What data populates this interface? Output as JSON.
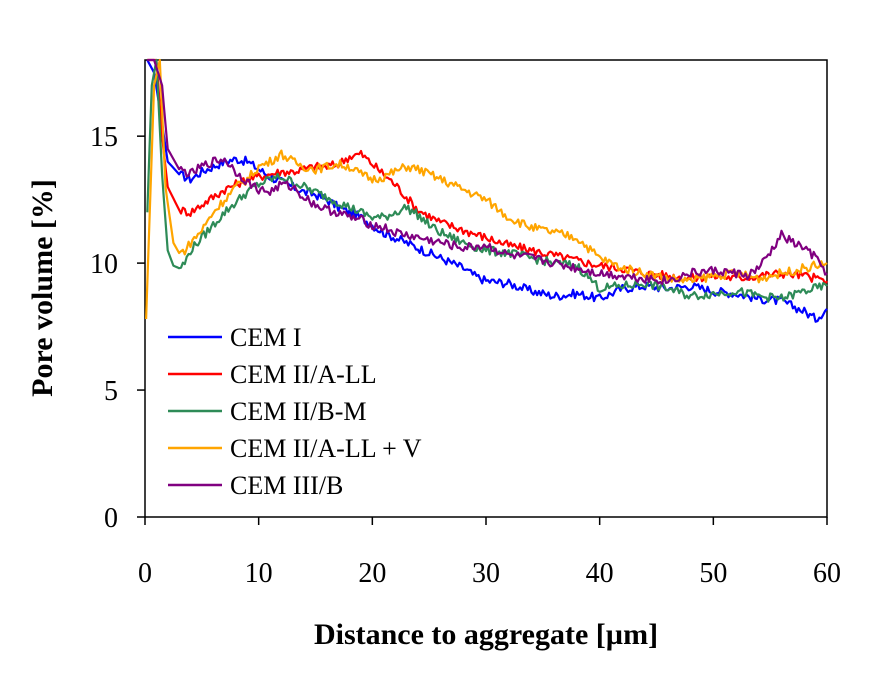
{
  "chart_data": {
    "type": "line",
    "title": "",
    "xlabel": "Distance to aggregate [µm]",
    "ylabel": "Pore volume [%]",
    "xlim": [
      0,
      60
    ],
    "ylim": [
      0,
      18
    ],
    "xticks": [
      0,
      10,
      20,
      30,
      40,
      50,
      60
    ],
    "yticks": [
      0,
      5,
      10,
      15
    ],
    "grid": false,
    "legend_position": "bottom-left",
    "series": [
      {
        "name": "CEM I",
        "color": "#0000ff",
        "x": [
          0.2,
          0.8,
          1.5,
          2,
          3,
          4,
          5,
          6,
          7,
          8,
          9,
          10,
          11,
          12,
          13,
          14,
          15,
          16,
          17,
          18,
          19,
          20,
          21,
          22,
          23,
          24,
          25,
          26,
          27,
          28,
          29,
          30,
          32,
          34,
          36,
          38,
          40,
          42,
          44,
          46,
          48,
          50,
          52,
          54,
          56,
          58,
          59,
          60
        ],
        "y": [
          18,
          17.5,
          15.5,
          14,
          13.5,
          13.3,
          13.6,
          13.8,
          14,
          14.1,
          14,
          13.7,
          13.4,
          13.2,
          13,
          12.8,
          12.7,
          12.5,
          12.2,
          12,
          11.8,
          11.5,
          11.2,
          11,
          10.8,
          10.6,
          10.4,
          10.2,
          10,
          9.8,
          9.5,
          9.3,
          9.2,
          8.9,
          8.7,
          8.8,
          8.6,
          9,
          9.1,
          9,
          9.1,
          8.9,
          8.8,
          8.6,
          8.5,
          8.1,
          7.8,
          8.2
        ]
      },
      {
        "name": "CEM II/A-LL",
        "color": "#ff0000",
        "x": [
          0.2,
          1,
          1.5,
          2,
          3,
          4,
          5,
          6,
          7,
          8,
          9,
          10,
          11,
          12,
          13,
          14,
          15,
          16,
          17,
          18,
          19,
          20,
          21,
          22,
          23,
          24,
          26,
          28,
          30,
          32,
          34,
          36,
          38,
          40,
          42,
          44,
          46,
          48,
          50,
          52,
          54,
          56,
          58,
          60
        ],
        "y": [
          18,
          18,
          15,
          13,
          12.1,
          12,
          12.3,
          12.6,
          12.9,
          13.1,
          13.3,
          13.4,
          13.5,
          13.6,
          13.6,
          13.7,
          13.8,
          13.8,
          13.9,
          14.2,
          14.3,
          13.9,
          13.5,
          13.1,
          12.6,
          12.1,
          11.6,
          11.3,
          11,
          10.7,
          10.5,
          10.3,
          10.1,
          9.9,
          9.8,
          9.6,
          9.5,
          9.4,
          9.5,
          9.4,
          9.5,
          9.6,
          9.5,
          9.3
        ]
      },
      {
        "name": "CEM II/B-M",
        "color": "#2e8b57",
        "x": [
          0.2,
          0.6,
          1,
          1.5,
          2,
          2.5,
          3,
          3.5,
          4,
          5,
          6,
          7,
          8,
          9,
          10,
          11,
          12,
          13,
          14,
          15,
          16,
          17,
          18,
          19,
          20,
          21,
          22,
          23,
          24,
          25,
          26,
          28,
          30,
          32,
          34,
          36,
          38,
          40,
          42,
          44,
          46,
          48,
          50,
          52,
          54,
          56,
          58,
          60
        ],
        "y": [
          12,
          17,
          18,
          13.5,
          10.5,
          9.9,
          9.8,
          10,
          10.5,
          11,
          11.5,
          12,
          12.4,
          12.8,
          13.1,
          13.3,
          13.4,
          13.2,
          13,
          12.8,
          12.6,
          12.4,
          12.2,
          12,
          11.8,
          11.8,
          12,
          12.2,
          11.9,
          11.5,
          11.2,
          10.8,
          10.5,
          10.4,
          10.2,
          10,
          9.9,
          9,
          9.1,
          9.2,
          9,
          8.7,
          8.8,
          8.9,
          8.7,
          8.6,
          8.9,
          9.1
        ]
      },
      {
        "name": "CEM II/A-LL + V",
        "color": "#ffa500",
        "x": [
          0.1,
          0.8,
          1.3,
          1.8,
          2.5,
          3,
          3.5,
          4,
          5,
          6,
          7,
          8,
          9,
          10,
          11,
          12,
          13,
          14,
          15,
          16,
          17,
          18,
          19,
          20,
          21,
          22,
          23,
          24,
          25,
          26,
          28,
          30,
          32,
          34,
          36,
          38,
          40,
          42,
          44,
          46,
          48,
          50,
          52,
          54,
          56,
          58,
          60
        ],
        "y": [
          7.8,
          17,
          18,
          13,
          10.8,
          10.4,
          10.5,
          10.8,
          11.3,
          12,
          12.5,
          13,
          13.3,
          13.8,
          14,
          14.3,
          14,
          13.8,
          13.7,
          13.8,
          13.9,
          13.8,
          13.5,
          13.3,
          13.4,
          13.6,
          13.8,
          13.7,
          13.5,
          13.3,
          12.9,
          12.5,
          11.8,
          11.4,
          11.2,
          11,
          10.2,
          9.8,
          9.6,
          9.4,
          9.3,
          9.5,
          9.6,
          9.4,
          9.6,
          9.8,
          10
        ]
      },
      {
        "name": "CEM III/B",
        "color": "#800080",
        "x": [
          0.2,
          0.8,
          1.5,
          2,
          3,
          4,
          5,
          6,
          7,
          8,
          9,
          10,
          11,
          12,
          13,
          14,
          15,
          16,
          17,
          18,
          19,
          20,
          21,
          22,
          23,
          24,
          25,
          26,
          28,
          30,
          32,
          34,
          36,
          38,
          40,
          42,
          44,
          46,
          48,
          50,
          52,
          53,
          54,
          55,
          56,
          57,
          58,
          59,
          60
        ],
        "y": [
          18,
          18,
          17,
          14.5,
          13.7,
          13.5,
          13.8,
          14,
          14.1,
          13.6,
          13.2,
          12.9,
          12.8,
          13.1,
          13,
          12.6,
          12.3,
          12.1,
          12,
          11.8,
          11.7,
          11.5,
          11.4,
          11.2,
          11.1,
          11,
          10.9,
          10.8,
          10.6,
          10.7,
          10.3,
          10.2,
          10,
          9.8,
          9.6,
          9.5,
          9.4,
          9.3,
          9.6,
          9.7,
          9.6,
          9.5,
          9.8,
          10.4,
          11.1,
          10.8,
          10.6,
          10.2,
          9.6
        ]
      }
    ]
  }
}
